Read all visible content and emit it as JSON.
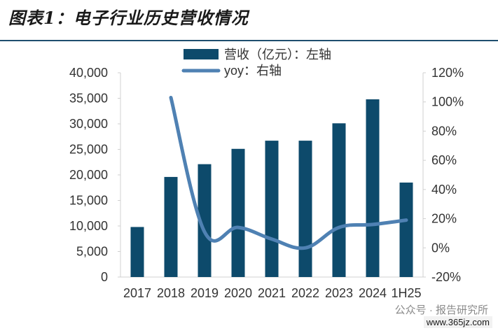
{
  "figure_title": "图表1：电子行业历史营收情况",
  "watermark": {
    "line1": "公众号 · 报告研究所",
    "line2": "www.365jz.com"
  },
  "colors": {
    "bar": "#0d4a6b",
    "line": "#4f81b3",
    "axis": "#d0d0d0",
    "text": "#333333"
  },
  "chart_data": {
    "type": "bar",
    "categories": [
      "2017",
      "2018",
      "2019",
      "2020",
      "2021",
      "2022",
      "2023",
      "2024",
      "1H25"
    ],
    "series": [
      {
        "name": "营收（亿元）：左轴",
        "type": "bar",
        "axis": "left",
        "values": [
          9800,
          19600,
          22100,
          25100,
          26700,
          26700,
          30100,
          34800,
          18500
        ]
      },
      {
        "name": "yoy：右轴",
        "type": "line",
        "axis": "right",
        "values": [
          null,
          103,
          11,
          14,
          6,
          0,
          14,
          16,
          19
        ]
      }
    ],
    "left_axis": {
      "min": 0,
      "max": 40000,
      "step": 5000,
      "tick_labels": [
        "0",
        "5,000",
        "10,000",
        "15,000",
        "20,000",
        "25,000",
        "30,000",
        "35,000",
        "40,000"
      ]
    },
    "right_axis": {
      "min": -20,
      "max": 120,
      "step": 20,
      "tick_labels": [
        "-20%",
        "0%",
        "20%",
        "40%",
        "60%",
        "80%",
        "100%",
        "120%"
      ]
    },
    "legend_position": "top-center",
    "grid": false
  }
}
